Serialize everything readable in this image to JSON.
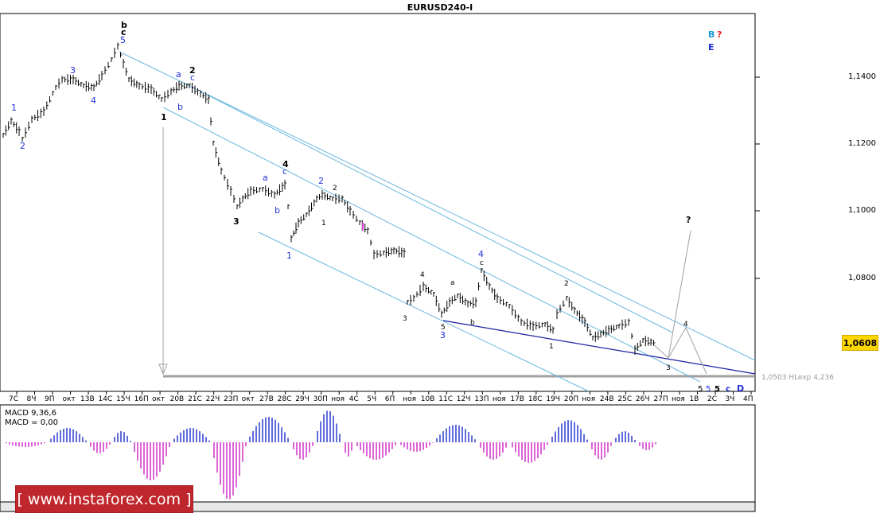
{
  "title": "EURUSD240-I",
  "price_axis": [
    "1,1400",
    "1,1200",
    "1,1000",
    "1,0800",
    "1,0608"
  ],
  "current_price": "1,0608",
  "hl_label": "1,0503 HLexp 4,236",
  "x_axis": [
    "7C",
    "8Ч",
    "9П",
    "окт",
    "13В",
    "14С",
    "15Ч",
    "16П",
    "окт",
    "20В",
    "21С",
    "22Ч",
    "23П",
    "окт",
    "27В",
    "28С",
    "29Ч",
    "30П",
    "ноя",
    "4С",
    "5Ч",
    "6П",
    "ноя",
    "10В",
    "11С",
    "12Ч",
    "13П",
    "ноя",
    "17В",
    "18С",
    "19Ч",
    "20П",
    "ноя",
    "24В",
    "25С",
    "26Ч",
    "27П",
    "ноя",
    "1В",
    "2С",
    "3Ч",
    "4П"
  ],
  "macd": {
    "label1": "MACD 9,36,6",
    "label2": "MACD = 0,00"
  },
  "watermark": "[ www.instaforex.com ]",
  "annotations": {
    "b_top": "b",
    "c_top": "c",
    "five_top": "5",
    "one_a": "1",
    "two_a": "2",
    "three_a": "3",
    "four_a": "4",
    "one_b": "1",
    "a1": "a",
    "two_b": "2",
    "c1": "c",
    "b1": "b",
    "three_b": "3",
    "four_b": "4",
    "a2": "a",
    "c2": "c",
    "b2": "b",
    "one_c": "1",
    "two_c": "2",
    "one_d": "1",
    "two_d": "2",
    "one_e": "1",
    "three_c": "3",
    "four_c": "4",
    "five_c": "5",
    "three_d": "3",
    "a3": "a",
    "b3": "b",
    "four_d": "4",
    "c3": "c",
    "two_e": "2",
    "one_f": "1",
    "three_e": "3",
    "four_e": "4",
    "q_main": "?",
    "B": "B",
    "q_B": "?",
    "E": "E",
    "five_1": "5",
    "five_2": "5",
    "five_3": "5",
    "c_end": "c",
    "D_end": "D"
  },
  "colors": {
    "annot_blue": "#1f2fd8",
    "annot_black": "#000000",
    "B_cyan": "#1e9ad6",
    "q_red": "#e02020",
    "channel": "#6ab8de",
    "trendline": "#1a20a0",
    "macd_pos": "#2a3ad0",
    "macd_neg": "#d030c8"
  }
}
